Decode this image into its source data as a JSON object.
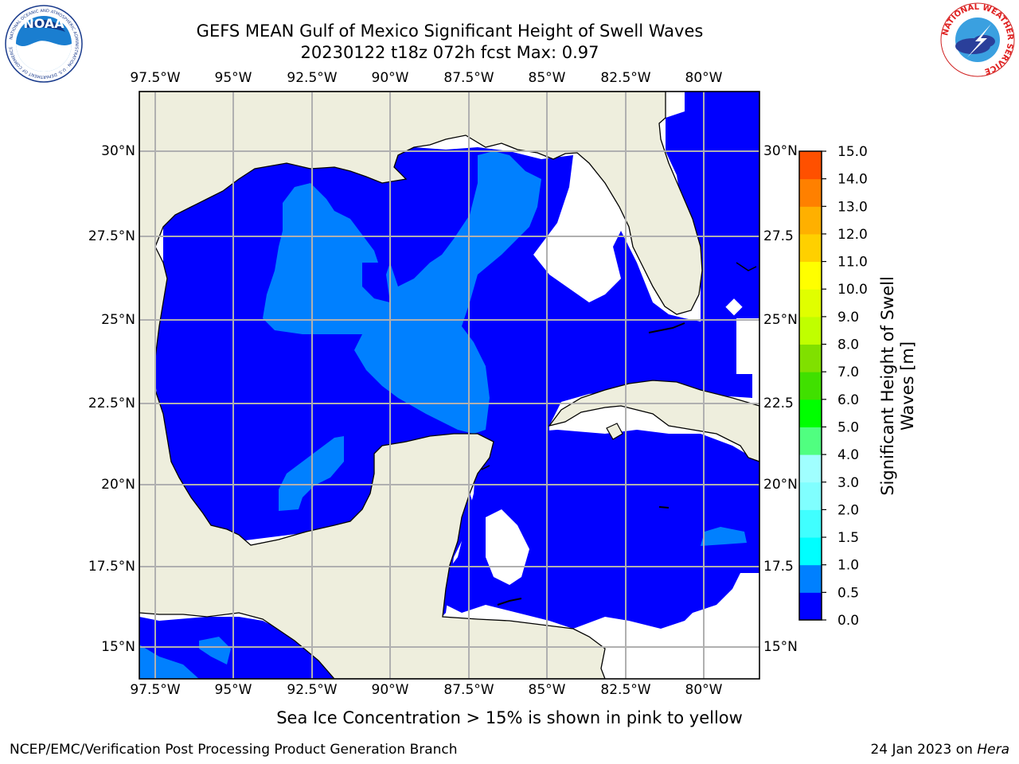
{
  "title_line1": "GEFS MEAN Gulf of Mexico Significant Height of Swell Waves",
  "title_line2": "20230122 t18z 072h fcst   Max: 0.97",
  "noaa_logo_text": "NOAA",
  "noaa_ring_text": "NATIONAL OCEANIC AND ATMOSPHERIC ADMINISTRATION · U.S. DEPARTMENT OF COMMERCE",
  "nws_ring_text": "NATIONAL WEATHER SERVICE",
  "lon_labels": [
    "97.5°W",
    "95°W",
    "92.5°W",
    "90°W",
    "87.5°W",
    "85°W",
    "82.5°W",
    "80°W"
  ],
  "lat_labels_left": [
    "30°N",
    "27.5°N",
    "25°N",
    "22.5°N",
    "20°N",
    "17.5°N",
    "15°N"
  ],
  "lat_labels_right": [
    "30°N",
    "27.5",
    "25°N",
    "22.5",
    "20°N",
    "17.5",
    "15°N"
  ],
  "colorbar": {
    "label": "Significant Height of Swell Waves [m]",
    "label_line1": "Significant Height of Swell",
    "label_line2": "Waves [m]",
    "ticks": [
      "15.0",
      "14.0",
      "13.0",
      "12.0",
      "11.0",
      "10.0",
      "9.0",
      "8.0",
      "7.0",
      "6.0",
      "5.0",
      "4.0",
      "3.0",
      "2.0",
      "1.5",
      "1.0",
      "0.5",
      "0.0"
    ],
    "colors_bottom_to_top": [
      "#0000ff",
      "#0080ff",
      "#00ffff",
      "#40ffff",
      "#80ffff",
      "#a0ffff",
      "#50ff80",
      "#00ff00",
      "#40e000",
      "#80e000",
      "#c0ff00",
      "#e0ff00",
      "#ffff00",
      "#ffd000",
      "#ffb000",
      "#ff8000",
      "#ff5000",
      "#ff2000",
      "#ff0000"
    ]
  },
  "note": "Sea Ice Concentration > 15% is shown in pink to yellow",
  "footer_left": "NCEP/EMC/Verification Post Processing Product Generation Branch",
  "footer_right_prefix": "24 Jan 2023 on ",
  "footer_right_host": "Hera",
  "map_colors": {
    "land": "#eeeedd",
    "swell_lt_0_5": "#0000ff",
    "swell_0_5_1_0": "#0080ff",
    "no_data": "#ffffff",
    "gridline": "#b0b0b0"
  }
}
